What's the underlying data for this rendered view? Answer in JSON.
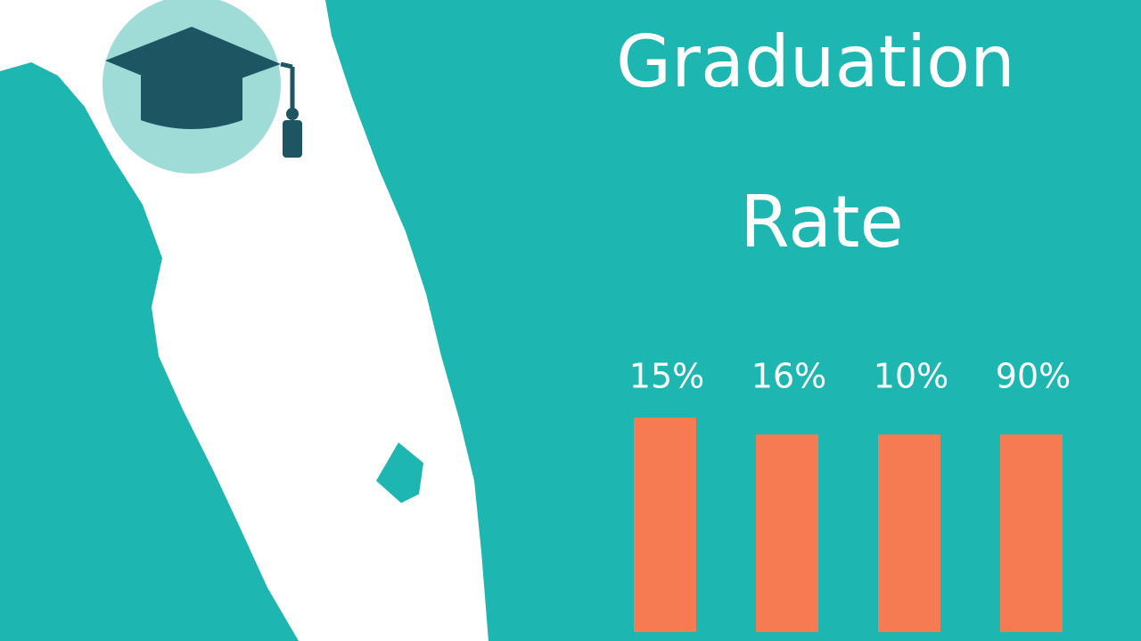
{
  "title": [
    "Graduation",
    "Rate"
  ],
  "bars": [
    {
      "label": "15%"
    },
    {
      "label": "16%"
    },
    {
      "label": "10%"
    },
    {
      "label": "90%"
    }
  ]
}
